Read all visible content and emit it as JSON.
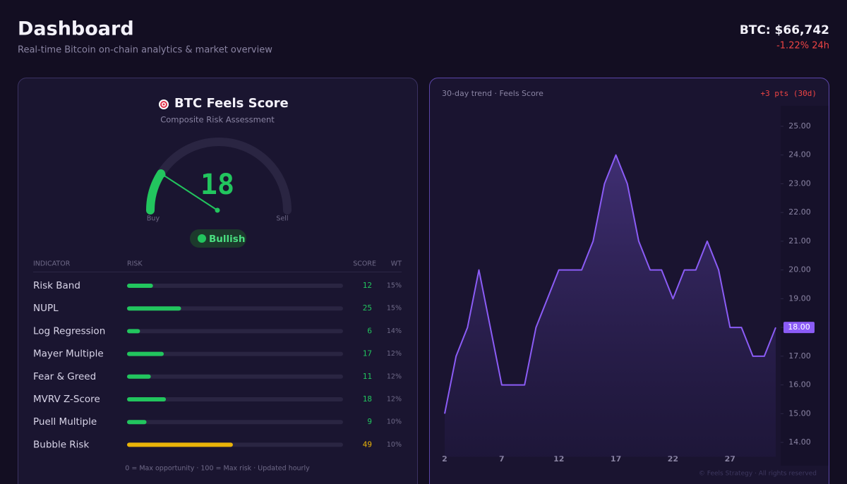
{
  "header": {
    "title": "Dashboard",
    "subtitle": "Real-time Bitcoin on-chain analytics & market overview",
    "price": "BTC: $66,742",
    "change": "-1.22% 24h"
  },
  "score_card": {
    "title": "BTC Feels Score",
    "subtitle": "Composite Risk Assessment",
    "gauge": {
      "value": 18,
      "min": 0,
      "max": 100,
      "min_label": "Buy",
      "max_label": "Sell",
      "status": "Bullish",
      "color": "#22c55e"
    },
    "table": {
      "headers": [
        "INDICATOR",
        "RISK",
        "SCORE",
        "WT"
      ],
      "rows": [
        {
          "name": "Risk Band",
          "score": 12,
          "weight": "15%",
          "color": "#22c55e"
        },
        {
          "name": "NUPL",
          "score": 25,
          "weight": "15%",
          "color": "#22c55e"
        },
        {
          "name": "Log Regression",
          "score": 6,
          "weight": "14%",
          "color": "#22c55e"
        },
        {
          "name": "Mayer Multiple",
          "score": 17,
          "weight": "12%",
          "color": "#22c55e"
        },
        {
          "name": "Fear & Greed",
          "score": 11,
          "weight": "12%",
          "color": "#22c55e"
        },
        {
          "name": "MVRV Z-Score",
          "score": 18,
          "weight": "12%",
          "color": "#22c55e"
        },
        {
          "name": "Puell Multiple",
          "score": 9,
          "weight": "10%",
          "color": "#22c55e"
        },
        {
          "name": "Bubble Risk",
          "score": 49,
          "weight": "10%",
          "color": "#eab308"
        }
      ]
    },
    "note": "0 = Max opportunity · 100 = Max risk · Updated hourly"
  },
  "chart_data": {
    "type": "line",
    "title": "30-day trend · Feels Score",
    "annotation": "+3 pts (30d)",
    "x": [
      2,
      3,
      4,
      5,
      6,
      7,
      8,
      9,
      10,
      11,
      12,
      13,
      14,
      15,
      16,
      17,
      18,
      19,
      20,
      21,
      22,
      23,
      24,
      25,
      26,
      27,
      28,
      29,
      30,
      31
    ],
    "series": [
      {
        "name": "Feels Score",
        "color": "#8b5cf6",
        "values": [
          15,
          17,
          18,
          20,
          18,
          16,
          16,
          16,
          18,
          19,
          20,
          20,
          20,
          21,
          23,
          24,
          23,
          21,
          20,
          20,
          19,
          20,
          20,
          21,
          20,
          18,
          18,
          17,
          17,
          18
        ]
      }
    ],
    "xlim": [
      2,
      31
    ],
    "xticks": [
      2,
      7,
      12,
      17,
      22,
      27
    ],
    "ylim": [
      13.5,
      25.5
    ],
    "yticks": [
      {
        "value": 14,
        "label": "14.00"
      },
      {
        "value": 15,
        "label": "15.00"
      },
      {
        "value": 16,
        "label": "16.00"
      },
      {
        "value": 17,
        "label": "17.00"
      },
      {
        "value": 18,
        "label": "18.00"
      },
      {
        "value": 19,
        "label": "19.00"
      },
      {
        "value": 20,
        "label": "20.00"
      },
      {
        "value": 21,
        "label": "21.00"
      },
      {
        "value": 22,
        "label": "22.00"
      },
      {
        "value": 23,
        "label": "23.00"
      },
      {
        "value": 24,
        "label": "24.00"
      },
      {
        "value": 25,
        "label": "25.00"
      }
    ],
    "marker": {
      "value": 18,
      "label": "18.00"
    },
    "footer": "© Feels Strategy · All rights reserved"
  }
}
